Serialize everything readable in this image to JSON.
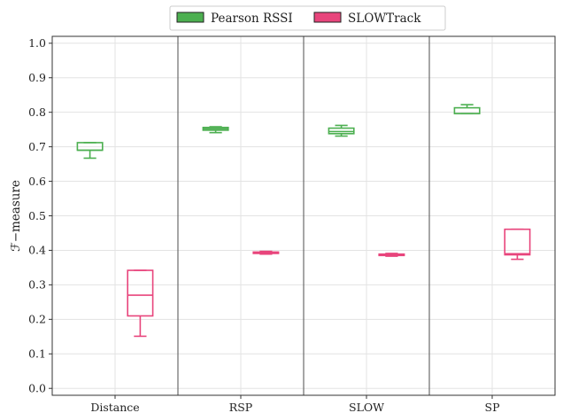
{
  "chart_data": {
    "type": "box",
    "title": "",
    "xlabel": "",
    "ylabel": "ℱ−measure",
    "ylim": [
      -0.02,
      1.02
    ],
    "yticks": [
      0.0,
      0.1,
      0.2,
      0.3,
      0.4,
      0.5,
      0.6,
      0.7,
      0.8,
      0.9,
      1.0
    ],
    "ytick_labels": [
      "0.0",
      "0.1",
      "0.2",
      "0.3",
      "0.4",
      "0.5",
      "0.6",
      "0.7",
      "0.8",
      "0.9",
      "1.0"
    ],
    "categories": [
      "Distance",
      "RSP",
      "SLOW",
      "SP"
    ],
    "grid": true,
    "legend_position": "top-center",
    "series": [
      {
        "name": "Pearson RSSI",
        "color": "#4caf50",
        "boxes": [
          {
            "whislo": 0.667,
            "q1": 0.69,
            "med": 0.69,
            "q3": 0.712,
            "whishi": 0.712
          },
          {
            "whislo": 0.741,
            "q1": 0.748,
            "med": 0.752,
            "q3": 0.756,
            "whishi": 0.758
          },
          {
            "whislo": 0.731,
            "q1": 0.738,
            "med": 0.744,
            "q3": 0.754,
            "whishi": 0.762
          },
          {
            "whislo": 0.796,
            "q1": 0.796,
            "med": 0.796,
            "q3": 0.813,
            "whishi": 0.822
          }
        ]
      },
      {
        "name": "SLOWTrack",
        "color": "#e8457c",
        "boxes": [
          {
            "whislo": 0.151,
            "q1": 0.21,
            "med": 0.27,
            "q3": 0.342,
            "whishi": 0.342
          },
          {
            "whislo": 0.389,
            "q1": 0.391,
            "med": 0.393,
            "q3": 0.395,
            "whishi": 0.397
          },
          {
            "whislo": 0.383,
            "q1": 0.385,
            "med": 0.387,
            "q3": 0.389,
            "whishi": 0.391
          },
          {
            "whislo": 0.374,
            "q1": 0.387,
            "med": 0.39,
            "q3": 0.461,
            "whishi": 0.461
          }
        ]
      }
    ]
  }
}
